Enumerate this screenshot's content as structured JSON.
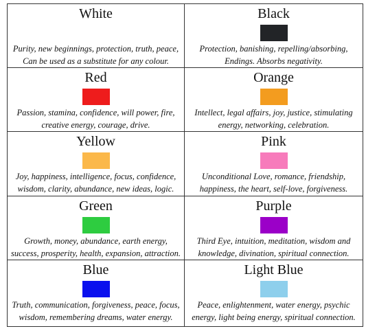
{
  "table": {
    "cells": [
      {
        "name": "White",
        "color": "#ffffff",
        "lines": [
          "Purity, new beginnings, protection, truth, peace,",
          "Can be used as a substitute for any colour."
        ]
      },
      {
        "name": "Black",
        "color": "#222427",
        "lines": [
          "Protection, banishing, repelling/absorbing,",
          "Endings. Absorbs negativity."
        ]
      },
      {
        "name": "Red",
        "color": "#ee1c1c",
        "lines": [
          "Passion, stamina, confidence, will power, fire,",
          "creative energy, courage, drive."
        ]
      },
      {
        "name": "Orange",
        "color": "#f39c1f",
        "lines": [
          "Intellect, legal affairs, joy, justice, stimulating",
          "energy, networking, celebration."
        ]
      },
      {
        "name": "Yellow",
        "color": "#fbb84a",
        "lines": [
          "Joy, happiness, intelligence, focus, confidence,",
          "wisdom, clarity, abundance, new ideas, logic."
        ]
      },
      {
        "name": "Pink",
        "color": "#f77bbb",
        "lines": [
          "Unconditional Love, romance, friendship,",
          "happiness, the heart, self-love, forgiveness."
        ]
      },
      {
        "name": "Green",
        "color": "#2ecc40",
        "lines": [
          "Growth, money, abundance, earth energy,",
          "success, prosperity, health, expansion, attraction."
        ]
      },
      {
        "name": "Purple",
        "color": "#9b00c8",
        "lines": [
          "Third Eye, intuition, meditation, wisdom and",
          "knowledge, divination, spiritual connection."
        ]
      },
      {
        "name": "Blue",
        "color": "#0a10ee",
        "lines": [
          "Truth, communication, forgiveness, peace, focus,",
          "wisdom, remembering dreams, water energy."
        ]
      },
      {
        "name": "Light Blue",
        "color": "#8ecfec",
        "lines": [
          "Peace, enlightenment, water energy, psychic",
          "energy, light being energy, spiritual connection."
        ]
      }
    ]
  }
}
